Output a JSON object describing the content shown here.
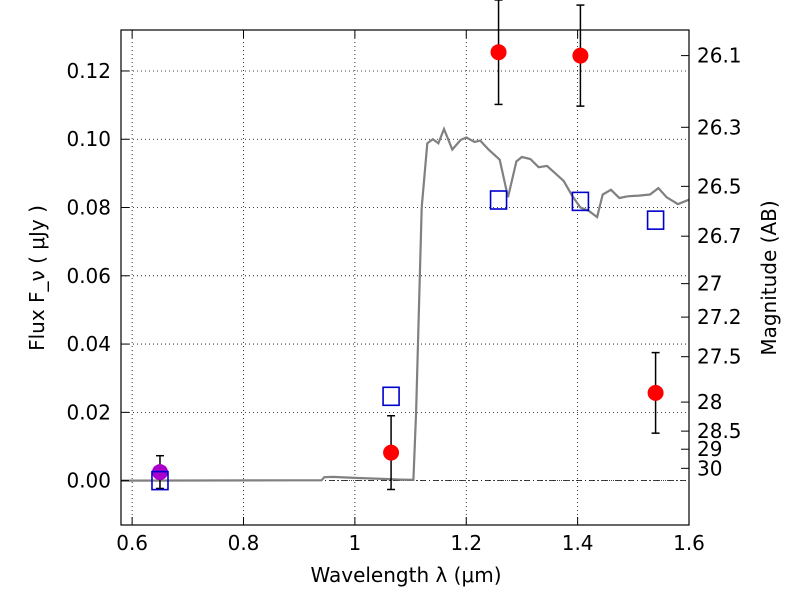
{
  "chart_data": {
    "type": "scatter",
    "xlabel": "Wavelength  λ (μm)",
    "ylabel": "Flux  F_ν  ( μJy )",
    "y2label": "Magnitude (AB)",
    "xlim": [
      0.58,
      1.6
    ],
    "ylim": [
      -0.013,
      0.132
    ],
    "x_ticks": [
      0.6,
      0.8,
      1.0,
      1.2,
      1.4,
      1.6
    ],
    "x_tick_labels": [
      "0.6",
      "0.8",
      "1",
      "1.2",
      "1.4",
      "1.6"
    ],
    "y_ticks": [
      0.0,
      0.02,
      0.04,
      0.06,
      0.08,
      0.1,
      0.12
    ],
    "y_tick_labels": [
      "0.00",
      "0.02",
      "0.04",
      "0.06",
      "0.08",
      "0.10",
      "0.12"
    ],
    "mag_ticks": [
      {
        "label": "26.1",
        "flux": 0.1245
      },
      {
        "label": "26.3",
        "flux": 0.1035
      },
      {
        "label": "26.5",
        "flux": 0.0862
      },
      {
        "label": "26.7",
        "flux": 0.0716
      },
      {
        "label": "27",
        "flux": 0.0577
      },
      {
        "label": "27.2",
        "flux": 0.0479
      },
      {
        "label": "27.5",
        "flux": 0.0363
      },
      {
        "label": "28",
        "flux": 0.023
      },
      {
        "label": "28.5",
        "flux": 0.0145
      },
      {
        "label": "29",
        "flux": 0.0092
      },
      {
        "label": "30",
        "flux": 0.0036
      }
    ],
    "grid": true,
    "series": [
      {
        "kind": "line",
        "color": "#808080",
        "x": [
          0.58,
          0.9,
          0.94,
          0.945,
          0.96,
          1.0,
          1.05,
          1.08,
          1.105,
          1.11,
          1.12,
          1.13,
          1.14,
          1.15,
          1.16,
          1.175,
          1.19,
          1.2,
          1.215,
          1.225,
          1.24,
          1.26,
          1.275,
          1.29,
          1.3,
          1.315,
          1.33,
          1.345,
          1.36,
          1.375,
          1.39,
          1.405,
          1.42,
          1.435,
          1.445,
          1.46,
          1.475,
          1.49,
          1.51,
          1.53,
          1.545,
          1.56,
          1.58,
          1.6
        ],
        "y": [
          0.0,
          0.0001,
          0.0001,
          0.001,
          0.0011,
          0.0008,
          0.0005,
          0.0003,
          0.0002,
          0.02,
          0.08,
          0.0988,
          0.1,
          0.0988,
          0.103,
          0.097,
          0.0998,
          0.1005,
          0.0992,
          0.0996,
          0.097,
          0.094,
          0.083,
          0.0935,
          0.0948,
          0.0942,
          0.0918,
          0.0922,
          0.09,
          0.0878,
          0.0835,
          0.08,
          0.079,
          0.0772,
          0.0838,
          0.0852,
          0.0828,
          0.0833,
          0.0835,
          0.0838,
          0.0857,
          0.083,
          0.081,
          0.0823
        ]
      },
      {
        "kind": "points",
        "marker": "circle",
        "color": "#ff0000",
        "points": [
          {
            "x": 1.065,
            "y": 0.0082,
            "err": 0.0108
          },
          {
            "x": 1.258,
            "y": 0.1255,
            "err": 0.0153
          },
          {
            "x": 1.405,
            "y": 0.1245,
            "err": 0.0148
          },
          {
            "x": 1.54,
            "y": 0.0257,
            "err": 0.0118
          }
        ]
      },
      {
        "kind": "points",
        "marker": "circle",
        "color": "#aa00cc",
        "points": [
          {
            "x": 0.65,
            "y": 0.0025,
            "err": 0.0048
          }
        ]
      },
      {
        "kind": "points",
        "marker": "square-open",
        "color": "#0000cc",
        "points": [
          {
            "x": 0.65,
            "y": 0.0
          },
          {
            "x": 1.065,
            "y": 0.0247
          },
          {
            "x": 1.258,
            "y": 0.0822
          },
          {
            "x": 1.405,
            "y": 0.0818
          },
          {
            "x": 1.54,
            "y": 0.0763
          }
        ]
      }
    ]
  }
}
